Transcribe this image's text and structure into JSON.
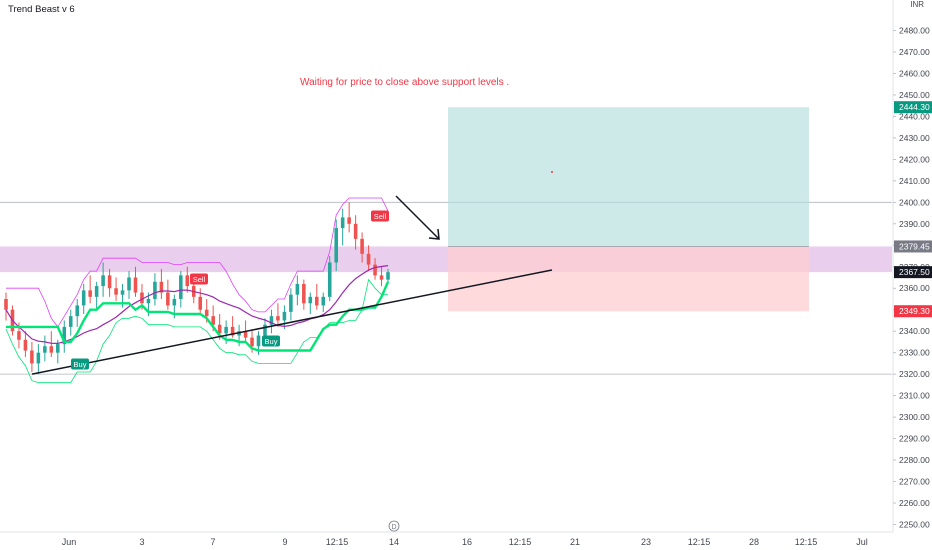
{
  "header": {
    "indicator_name": "Trend Beast v 6",
    "currency": "INR"
  },
  "chart_data": {
    "type": "candlestick",
    "title": "",
    "annotation": "Waiting for price to close above support levels .",
    "y_axis": {
      "ylim": [
        2245,
        2490
      ],
      "ticks": [
        2250,
        2260,
        2270,
        2280,
        2290,
        2300,
        2310,
        2320,
        2330,
        2340,
        2350,
        2360,
        2370,
        2380,
        2390,
        2400,
        2410,
        2420,
        2430,
        2440,
        2450,
        2460,
        2470,
        2480
      ],
      "tick_labels": [
        "2250.00",
        "2260.00",
        "2270.00",
        "2280.00",
        "2290.00",
        "2300.00",
        "2310.00",
        "2320.00",
        "2330.00",
        "2340.00",
        "2350.00",
        "2360.00",
        "2370.00",
        "2380.00",
        "2390.00",
        "2400.00",
        "2410.00",
        "2420.00",
        "2430.00",
        "2440.00",
        "2450.00",
        "2460.00",
        "2470.00",
        "2480.00"
      ]
    },
    "x_axis": {
      "ticks": [
        "Jun",
        "3",
        "7",
        "9",
        "12:15",
        "14",
        "16",
        "12:15",
        "21",
        "23",
        "12:15",
        "28",
        "12:15",
        "Jul"
      ],
      "marker": "D"
    },
    "price_tags": [
      {
        "value": 2444.3,
        "label": "2444.30",
        "color": "#089981"
      },
      {
        "value": 2379.45,
        "label": "2379.45",
        "color": "#787b86"
      },
      {
        "value": 2367.5,
        "label": "2367.50",
        "color": "#131722"
      },
      {
        "value": 2349.3,
        "label": "2349.30",
        "color": "#f23645"
      }
    ],
    "position_tool": {
      "entry": 2379.45,
      "target": 2444.3,
      "stop": 2349.3
    },
    "support_band": [
      2367.5,
      2379.45
    ],
    "horizontal_lines": [
      2400,
      2320
    ],
    "signals": [
      {
        "label": "Sell",
        "price": 2390
      },
      {
        "label": "Sell",
        "price": 2362
      },
      {
        "label": "Buy",
        "price": 2332
      },
      {
        "label": "Buy",
        "price": 2322
      }
    ],
    "colors": {
      "up": "#26a69a",
      "down": "#ef5350",
      "trail_up": "#00e676",
      "trail_down": "#e040fb",
      "profit_zone": "#b2dfdb",
      "loss_zone": "#ffcdd2",
      "band": "#e1bee7"
    },
    "candles": [
      {
        "o": 2355,
        "h": 2358,
        "l": 2345,
        "c": 2350
      },
      {
        "o": 2350,
        "h": 2352,
        "l": 2338,
        "c": 2340
      },
      {
        "o": 2340,
        "h": 2344,
        "l": 2332,
        "c": 2336
      },
      {
        "o": 2336,
        "h": 2340,
        "l": 2328,
        "c": 2331
      },
      {
        "o": 2331,
        "h": 2335,
        "l": 2321,
        "c": 2325
      },
      {
        "o": 2325,
        "h": 2334,
        "l": 2320,
        "c": 2330
      },
      {
        "o": 2330,
        "h": 2338,
        "l": 2326,
        "c": 2333
      },
      {
        "o": 2333,
        "h": 2340,
        "l": 2328,
        "c": 2330
      },
      {
        "o": 2330,
        "h": 2336,
        "l": 2325,
        "c": 2334
      },
      {
        "o": 2334,
        "h": 2345,
        "l": 2330,
        "c": 2342
      },
      {
        "o": 2342,
        "h": 2350,
        "l": 2338,
        "c": 2347
      },
      {
        "o": 2347,
        "h": 2355,
        "l": 2342,
        "c": 2352
      },
      {
        "o": 2352,
        "h": 2362,
        "l": 2348,
        "c": 2359
      },
      {
        "o": 2359,
        "h": 2366,
        "l": 2353,
        "c": 2356
      },
      {
        "o": 2356,
        "h": 2363,
        "l": 2350,
        "c": 2361
      },
      {
        "o": 2361,
        "h": 2372,
        "l": 2356,
        "c": 2366
      },
      {
        "o": 2366,
        "h": 2369,
        "l": 2356,
        "c": 2360
      },
      {
        "o": 2360,
        "h": 2365,
        "l": 2354,
        "c": 2357
      },
      {
        "o": 2357,
        "h": 2362,
        "l": 2351,
        "c": 2359
      },
      {
        "o": 2359,
        "h": 2368,
        "l": 2355,
        "c": 2365
      },
      {
        "o": 2365,
        "h": 2370,
        "l": 2356,
        "c": 2358
      },
      {
        "o": 2358,
        "h": 2362,
        "l": 2350,
        "c": 2353
      },
      {
        "o": 2353,
        "h": 2358,
        "l": 2347,
        "c": 2355
      },
      {
        "o": 2355,
        "h": 2367,
        "l": 2352,
        "c": 2363
      },
      {
        "o": 2363,
        "h": 2369,
        "l": 2355,
        "c": 2358
      },
      {
        "o": 2358,
        "h": 2364,
        "l": 2350,
        "c": 2352
      },
      {
        "o": 2352,
        "h": 2357,
        "l": 2346,
        "c": 2355
      },
      {
        "o": 2355,
        "h": 2368,
        "l": 2351,
        "c": 2366
      },
      {
        "o": 2366,
        "h": 2370,
        "l": 2358,
        "c": 2361
      },
      {
        "o": 2361,
        "h": 2366,
        "l": 2353,
        "c": 2356
      },
      {
        "o": 2356,
        "h": 2360,
        "l": 2348,
        "c": 2350
      },
      {
        "o": 2350,
        "h": 2355,
        "l": 2344,
        "c": 2347
      },
      {
        "o": 2347,
        "h": 2352,
        "l": 2340,
        "c": 2343
      },
      {
        "o": 2343,
        "h": 2348,
        "l": 2336,
        "c": 2339
      },
      {
        "o": 2339,
        "h": 2345,
        "l": 2334,
        "c": 2342
      },
      {
        "o": 2342,
        "h": 2347,
        "l": 2337,
        "c": 2338
      },
      {
        "o": 2338,
        "h": 2343,
        "l": 2333,
        "c": 2340
      },
      {
        "o": 2340,
        "h": 2345,
        "l": 2335,
        "c": 2337
      },
      {
        "o": 2337,
        "h": 2341,
        "l": 2330,
        "c": 2333
      },
      {
        "o": 2333,
        "h": 2340,
        "l": 2329,
        "c": 2338
      },
      {
        "o": 2338,
        "h": 2346,
        "l": 2334,
        "c": 2343
      },
      {
        "o": 2343,
        "h": 2350,
        "l": 2339,
        "c": 2347
      },
      {
        "o": 2347,
        "h": 2353,
        "l": 2342,
        "c": 2345
      },
      {
        "o": 2345,
        "h": 2352,
        "l": 2341,
        "c": 2349
      },
      {
        "o": 2349,
        "h": 2360,
        "l": 2345,
        "c": 2357
      },
      {
        "o": 2357,
        "h": 2366,
        "l": 2352,
        "c": 2362
      },
      {
        "o": 2362,
        "h": 2364,
        "l": 2350,
        "c": 2353
      },
      {
        "o": 2353,
        "h": 2358,
        "l": 2348,
        "c": 2356
      },
      {
        "o": 2356,
        "h": 2362,
        "l": 2350,
        "c": 2352
      },
      {
        "o": 2352,
        "h": 2358,
        "l": 2349,
        "c": 2356
      },
      {
        "o": 2356,
        "h": 2375,
        "l": 2354,
        "c": 2372
      },
      {
        "o": 2372,
        "h": 2392,
        "l": 2368,
        "c": 2388
      },
      {
        "o": 2388,
        "h": 2397,
        "l": 2380,
        "c": 2393
      },
      {
        "o": 2393,
        "h": 2400,
        "l": 2386,
        "c": 2390
      },
      {
        "o": 2390,
        "h": 2394,
        "l": 2378,
        "c": 2383
      },
      {
        "o": 2383,
        "h": 2386,
        "l": 2372,
        "c": 2376
      },
      {
        "o": 2376,
        "h": 2380,
        "l": 2368,
        "c": 2371
      },
      {
        "o": 2371,
        "h": 2374,
        "l": 2364,
        "c": 2366
      },
      {
        "o": 2366,
        "h": 2370,
        "l": 2361,
        "c": 2364
      },
      {
        "o": 2364,
        "h": 2369,
        "l": 2362,
        "c": 2367.5
      }
    ]
  }
}
